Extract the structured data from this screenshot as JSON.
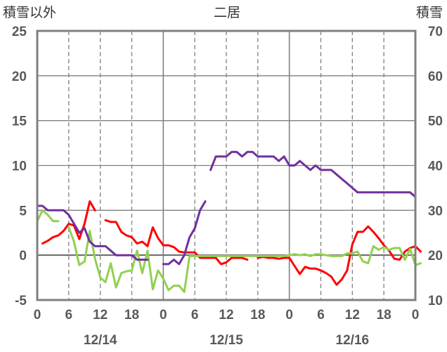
{
  "chart_data": {
    "type": "line",
    "title": "二居",
    "ylabel_left": "積雪以外",
    "ylabel_right": "積雪",
    "ylim_left": [
      -5,
      25
    ],
    "ylim_right": [
      10,
      70
    ],
    "yticks_left": [
      "25",
      "20",
      "15",
      "10",
      "5",
      "0",
      "-5"
    ],
    "yticks_right": [
      "70",
      "60",
      "50",
      "40",
      "30",
      "20",
      "10"
    ],
    "xlim_hours": [
      0,
      72
    ],
    "xticks": [
      "0",
      "6",
      "12",
      "18",
      "0",
      "6",
      "12",
      "18",
      "0",
      "6",
      "12",
      "18",
      "0"
    ],
    "date_labels": [
      "12/14",
      "12/15",
      "12/16"
    ],
    "grid": true,
    "colors": {
      "temperature": "#ff0000",
      "wind": "#92d050",
      "snow_depth": "#7030a0",
      "frame": "#808080",
      "grid": "#808080"
    },
    "series": [
      {
        "key": "temperature",
        "axis": "left",
        "segments": [
          [
            [
              1,
              1.3
            ],
            [
              2,
              1.6
            ],
            [
              3,
              2.0
            ],
            [
              4,
              2.2
            ],
            [
              5,
              2.7
            ],
            [
              6,
              3.5
            ],
            [
              7,
              3.3
            ],
            [
              8,
              1.8
            ],
            [
              9,
              3.5
            ],
            [
              10,
              6.0
            ],
            [
              11,
              5.0
            ]
          ],
          [
            [
              13,
              3.9
            ],
            [
              14,
              3.7
            ],
            [
              15,
              3.7
            ],
            [
              16,
              2.6
            ],
            [
              17,
              2.2
            ],
            [
              18,
              2.0
            ],
            [
              19,
              1.3
            ],
            [
              20,
              1.5
            ],
            [
              21,
              1.0
            ],
            [
              22,
              3.1
            ],
            [
              23,
              1.9
            ],
            [
              24,
              1.1
            ],
            [
              25,
              1.1
            ],
            [
              26,
              0.9
            ],
            [
              27,
              0.4
            ],
            [
              28,
              0.3
            ],
            [
              29,
              0.3
            ],
            [
              30,
              0.3
            ],
            [
              31,
              -0.3
            ],
            [
              32,
              -0.3
            ],
            [
              33,
              -0.3
            ],
            [
              34,
              -0.3
            ],
            [
              35,
              -1.0
            ],
            [
              36,
              -0.8
            ],
            [
              37,
              -0.3
            ],
            [
              38,
              -0.3
            ],
            [
              39,
              -0.3
            ],
            [
              40,
              -0.5
            ]
          ],
          [
            [
              42,
              -0.3
            ],
            [
              43,
              -0.2
            ],
            [
              44,
              -0.3
            ],
            [
              45,
              -0.3
            ],
            [
              46,
              -0.4
            ],
            [
              47,
              -0.3
            ],
            [
              48,
              -0.3
            ],
            [
              49,
              -1.2
            ],
            [
              50,
              -2.1
            ],
            [
              51,
              -1.3
            ],
            [
              52,
              -1.5
            ],
            [
              53,
              -1.5
            ],
            [
              54,
              -1.7
            ],
            [
              55,
              -2.0
            ],
            [
              56,
              -2.4
            ],
            [
              57,
              -3.3
            ],
            [
              58,
              -2.7
            ],
            [
              59,
              -1.7
            ],
            [
              60,
              1.2
            ],
            [
              61,
              2.6
            ],
            [
              62,
              2.6
            ],
            [
              63,
              3.2
            ],
            [
              64,
              2.6
            ],
            [
              65,
              1.9
            ],
            [
              66,
              1.1
            ],
            [
              67,
              0.5
            ],
            [
              68,
              -0.4
            ],
            [
              69,
              -0.5
            ],
            [
              70,
              0.4
            ],
            [
              71,
              0.8
            ],
            [
              72,
              1.0
            ],
            [
              73,
              0.4
            ]
          ]
        ]
      },
      {
        "key": "wind",
        "axis": "left",
        "segments": [
          [
            [
              0,
              3.8
            ],
            [
              1,
              5.0
            ],
            [
              2,
              4.5
            ],
            [
              3,
              3.8
            ],
            [
              4,
              3.8
            ]
          ],
          [
            [
              6,
              3.1
            ],
            [
              7,
              1.5
            ],
            [
              8,
              -1.1
            ],
            [
              9,
              -0.7
            ],
            [
              10,
              2.7
            ],
            [
              11,
              -0.4
            ],
            [
              12,
              -2.5
            ],
            [
              13,
              -3.0
            ],
            [
              14,
              -0.9
            ],
            [
              15,
              -3.6
            ],
            [
              16,
              -2.0
            ],
            [
              17,
              -1.8
            ],
            [
              18,
              -1.7
            ],
            [
              19,
              0.5
            ],
            [
              20,
              -2.0
            ],
            [
              21,
              0.5
            ],
            [
              22,
              -3.8
            ],
            [
              23,
              -1.7
            ],
            [
              24,
              -2.6
            ],
            [
              25,
              -3.9
            ],
            [
              26,
              -3.4
            ],
            [
              27,
              -3.4
            ],
            [
              28,
              -4.1
            ],
            [
              29,
              -0.1
            ],
            [
              30,
              -0.1
            ],
            [
              31,
              -0.1
            ],
            [
              32,
              -0.1
            ],
            [
              33,
              -0.1
            ],
            [
              34,
              -0.1
            ],
            [
              35,
              -0.1
            ],
            [
              36,
              -0.1
            ],
            [
              37,
              -0.1
            ],
            [
              38,
              -0.1
            ],
            [
              39,
              -0.1
            ],
            [
              40,
              -0.1
            ],
            [
              41,
              -0.1
            ],
            [
              42,
              -0.1
            ],
            [
              43,
              -0.1
            ],
            [
              44,
              -0.1
            ],
            [
              45,
              -0.1
            ],
            [
              46,
              -0.1
            ],
            [
              47,
              -0.1
            ],
            [
              48,
              0.0
            ],
            [
              49,
              0.1
            ],
            [
              50,
              0.0
            ],
            [
              51,
              0.1
            ],
            [
              52,
              -0.1
            ],
            [
              53,
              0.1
            ],
            [
              54,
              0.1
            ],
            [
              55,
              0.0
            ],
            [
              56,
              -0.1
            ],
            [
              57,
              -0.1
            ],
            [
              58,
              -0.1
            ],
            [
              59,
              0.2
            ],
            [
              60,
              0.2
            ],
            [
              61,
              0.4
            ],
            [
              62,
              -0.7
            ],
            [
              63,
              -0.9
            ],
            [
              64,
              1.0
            ],
            [
              65,
              0.6
            ],
            [
              66,
              0.9
            ],
            [
              67,
              0.6
            ],
            [
              68,
              0.8
            ],
            [
              69,
              0.8
            ],
            [
              70,
              -0.5
            ],
            [
              71,
              0.7
            ],
            [
              72,
              -1.1
            ],
            [
              73,
              -0.9
            ]
          ]
        ]
      },
      {
        "key": "snow_depth",
        "axis": "right",
        "segments": [
          [
            [
              0,
              31
            ],
            [
              1,
              31
            ],
            [
              2,
              30
            ],
            [
              3,
              30
            ],
            [
              4,
              30
            ],
            [
              5,
              30
            ],
            [
              6,
              29
            ],
            [
              7,
              27
            ],
            [
              8,
              25
            ],
            [
              9,
              26
            ],
            [
              10,
              23
            ],
            [
              11,
              22
            ],
            [
              12,
              22
            ],
            [
              13,
              22
            ],
            [
              14,
              21
            ],
            [
              15,
              20
            ],
            [
              16,
              20
            ],
            [
              17,
              20
            ],
            [
              18,
              20
            ],
            [
              19,
              19
            ],
            [
              20,
              19
            ],
            [
              21,
              19
            ]
          ],
          [
            [
              24,
              18
            ],
            [
              25,
              18
            ],
            [
              26,
              19
            ],
            [
              27,
              18
            ],
            [
              28,
              20
            ],
            [
              29,
              24
            ],
            [
              30,
              26
            ],
            [
              31,
              30
            ],
            [
              32,
              32
            ]
          ],
          [
            [
              33,
              39
            ],
            [
              34,
              42
            ],
            [
              35,
              42
            ],
            [
              36,
              42
            ],
            [
              37,
              43
            ],
            [
              38,
              43
            ],
            [
              39,
              42
            ],
            [
              40,
              43
            ],
            [
              41,
              43
            ],
            [
              42,
              42
            ],
            [
              43,
              42
            ],
            [
              44,
              42
            ],
            [
              45,
              42
            ],
            [
              46,
              41
            ],
            [
              47,
              42
            ],
            [
              48,
              40
            ],
            [
              49,
              40
            ],
            [
              50,
              41
            ],
            [
              51,
              40
            ],
            [
              52,
              39
            ],
            [
              53,
              40
            ],
            [
              54,
              39
            ],
            [
              55,
              39
            ],
            [
              56,
              39
            ],
            [
              57,
              38
            ],
            [
              58,
              37
            ],
            [
              59,
              36
            ],
            [
              60,
              35
            ],
            [
              61,
              34
            ],
            [
              62,
              34
            ],
            [
              63,
              34
            ],
            [
              64,
              34
            ],
            [
              65,
              34
            ],
            [
              66,
              34
            ],
            [
              67,
              34
            ],
            [
              68,
              34
            ],
            [
              69,
              34
            ],
            [
              70,
              34
            ],
            [
              71,
              34
            ],
            [
              72,
              33
            ]
          ]
        ]
      }
    ]
  }
}
